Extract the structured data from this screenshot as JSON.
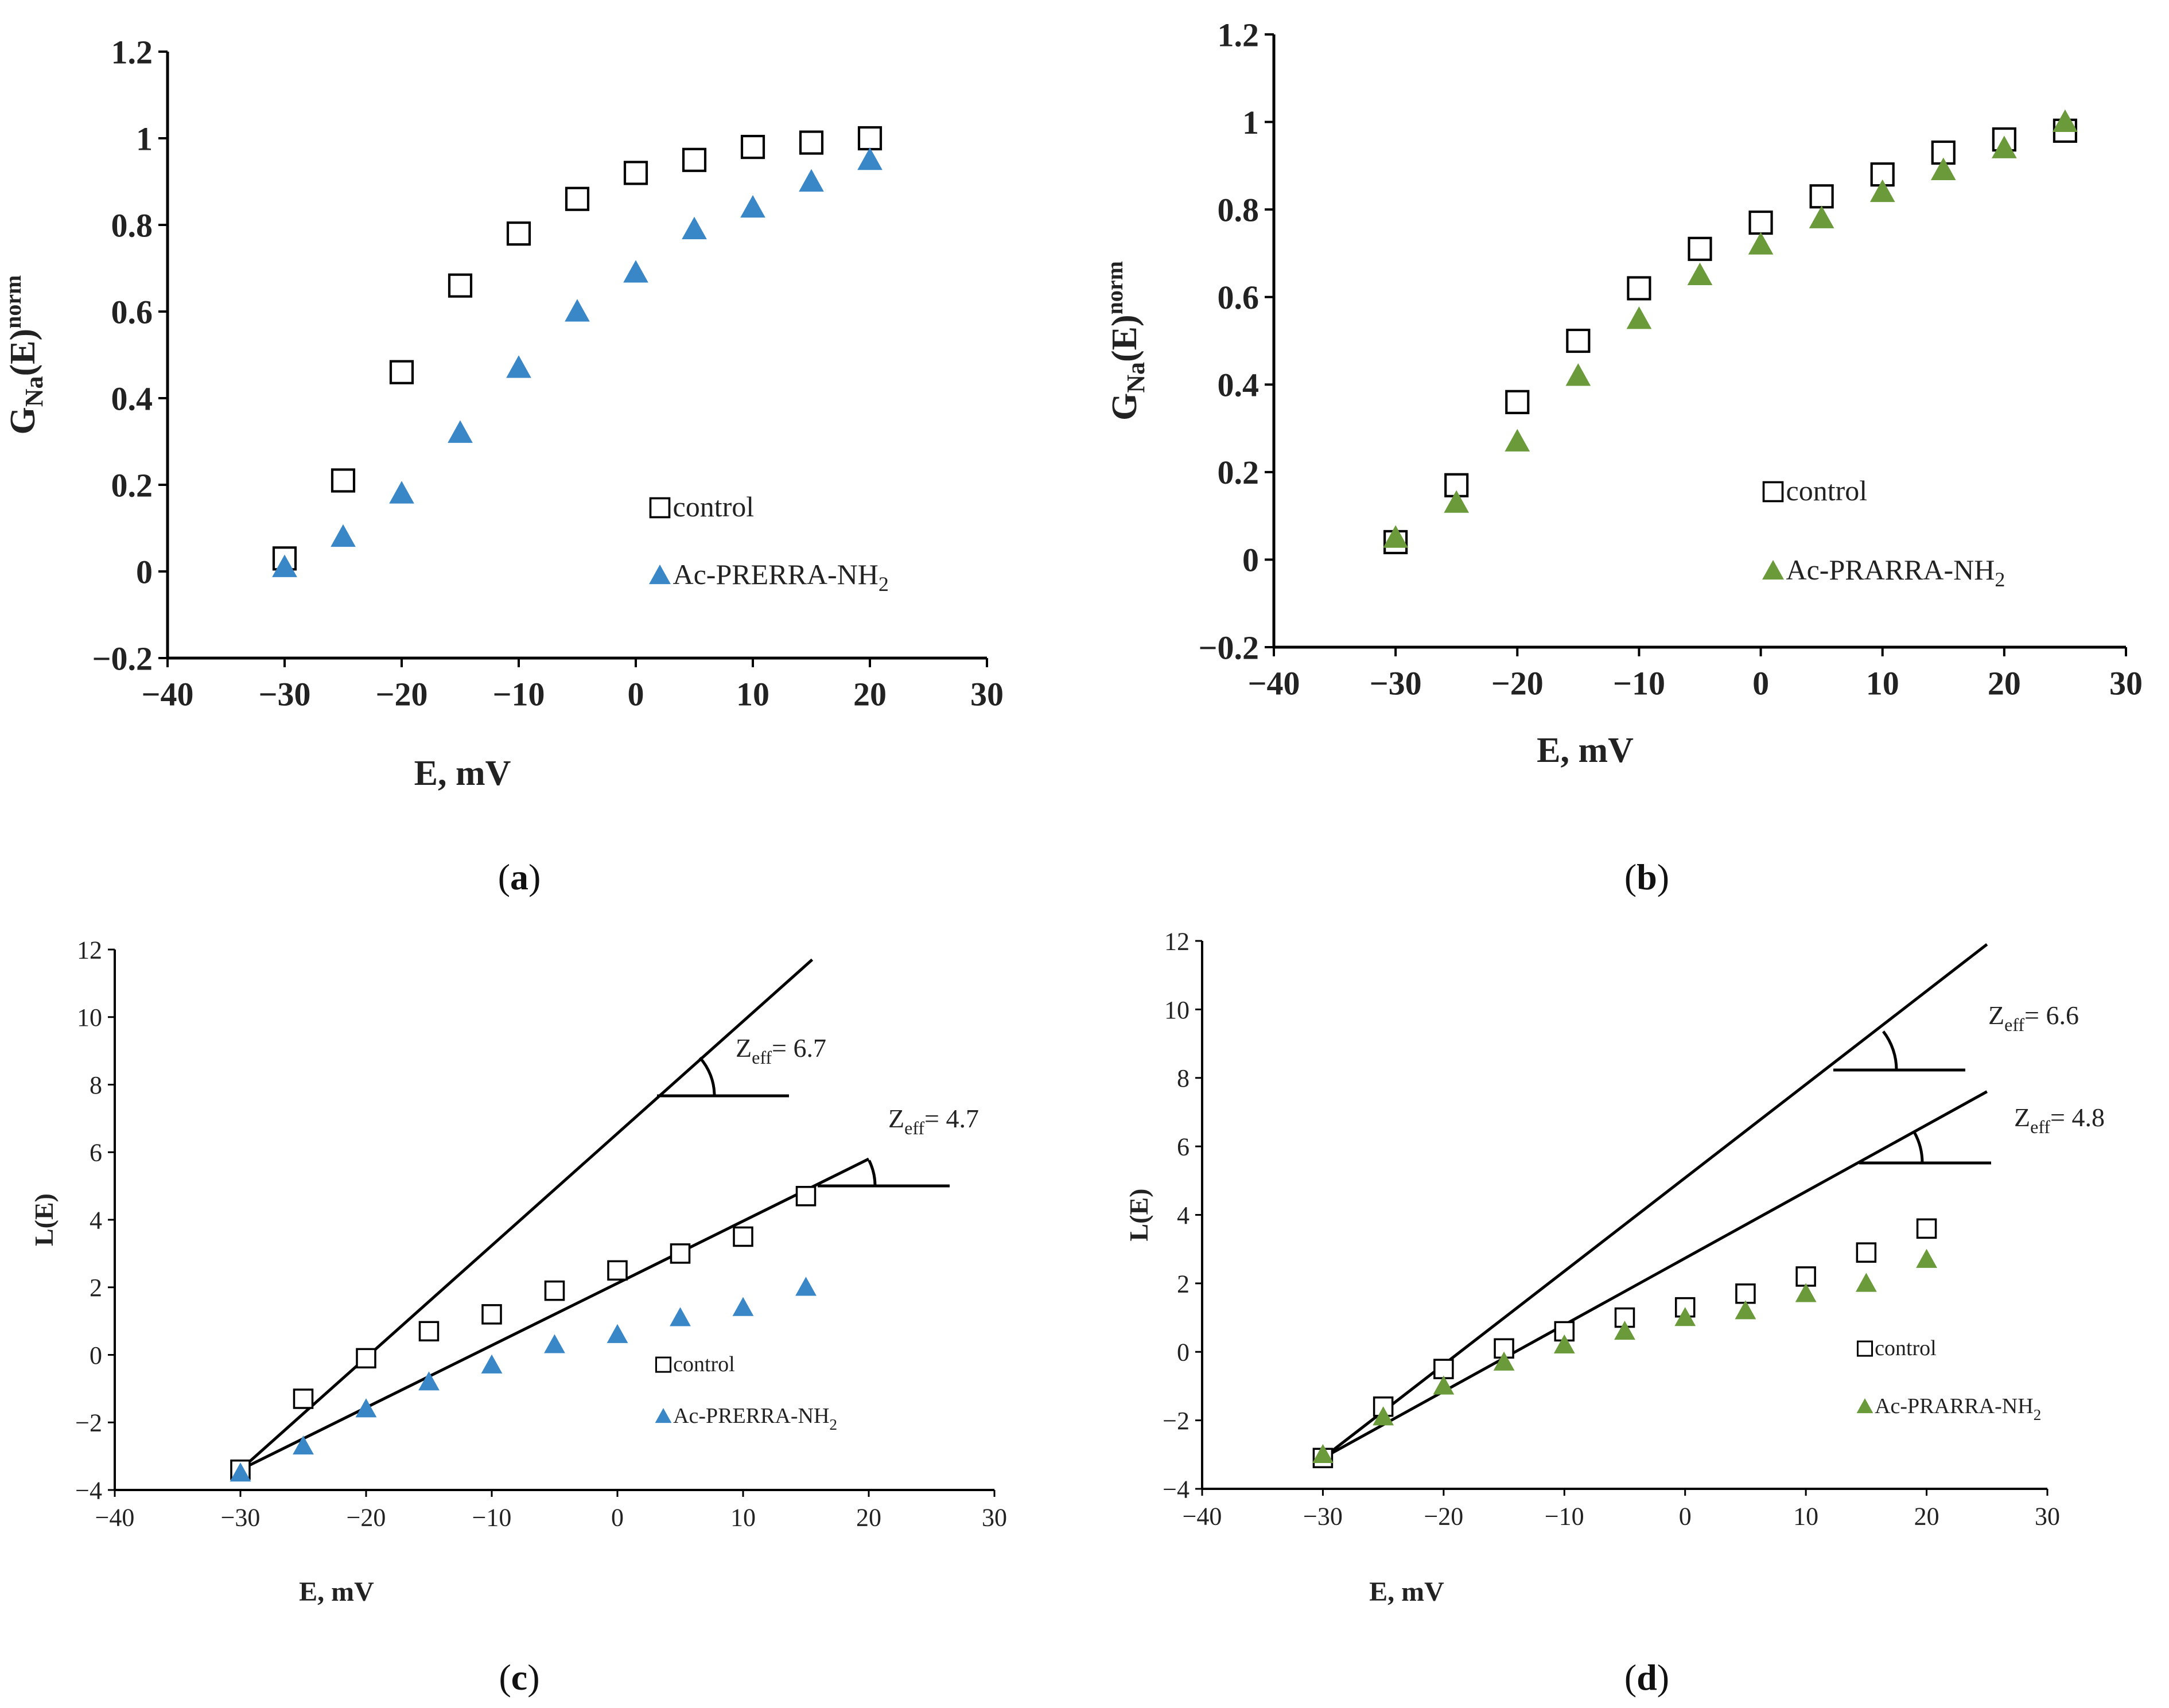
{
  "chart_data": [
    {
      "id": "a",
      "type": "scatter",
      "panel_label": "a",
      "xlabel": "E, mV",
      "ylabel_main": "G",
      "ylabel_sub": "Na",
      "ylabel_mid": "(E)",
      "ylabel_sup": "norm",
      "xlim": [
        -40,
        30
      ],
      "ylim": [
        -0.2,
        1.2
      ],
      "xticks": [
        -40,
        -30,
        -20,
        -10,
        0,
        10,
        20,
        30
      ],
      "yticks": [
        -0.2,
        0,
        0.2,
        0.4,
        0.6,
        0.8,
        1,
        1.2
      ],
      "xtick_labels": [
        "−40",
        "−30",
        "−20",
        "−10",
        "0",
        "10",
        "20",
        "30"
      ],
      "ytick_labels": [
        "−0.2",
        "0",
        "0.2",
        "0.4",
        "0.6",
        "0.8",
        "1",
        "1.2"
      ],
      "legend_position": "bottom-right",
      "series": [
        {
          "name": "control",
          "marker": "square",
          "color": "#000000",
          "x": [
            -30,
            -25,
            -20,
            -15,
            -10,
            -5,
            0,
            5,
            10,
            15,
            20
          ],
          "y": [
            0.03,
            0.21,
            0.46,
            0.66,
            0.78,
            0.86,
            0.92,
            0.95,
            0.98,
            0.99,
            1.0
          ]
        },
        {
          "name": "Ac-PRERRA-NH",
          "name_sub": "2",
          "marker": "triangle",
          "color": "#3a87c8",
          "x": [
            -30,
            -25,
            -20,
            -15,
            -10,
            -5,
            0,
            5,
            10,
            15,
            20
          ],
          "y": [
            0.01,
            0.08,
            0.18,
            0.32,
            0.47,
            0.6,
            0.69,
            0.79,
            0.84,
            0.9,
            0.95
          ]
        }
      ],
      "fit_lines": [],
      "annotations": []
    },
    {
      "id": "b",
      "type": "scatter",
      "panel_label": "b",
      "xlabel": "E, mV",
      "ylabel_main": "G",
      "ylabel_sub": "Na",
      "ylabel_mid": "(E)",
      "ylabel_sup": "norm",
      "xlim": [
        -40,
        30
      ],
      "ylim": [
        -0.2,
        1.2
      ],
      "xticks": [
        -40,
        -30,
        -20,
        -10,
        0,
        10,
        20,
        30
      ],
      "yticks": [
        -0.2,
        0,
        0.2,
        0.4,
        0.6,
        0.8,
        1,
        1.2
      ],
      "xtick_labels": [
        "−40",
        "−30",
        "−20",
        "−10",
        "0",
        "10",
        "20",
        "30"
      ],
      "ytick_labels": [
        "−0.2",
        "0",
        "0.2",
        "0.4",
        "0.6",
        "0.8",
        "1",
        "1.2"
      ],
      "legend_position": "bottom-right",
      "series": [
        {
          "name": "control",
          "marker": "square",
          "color": "#000000",
          "x": [
            -30,
            -25,
            -20,
            -15,
            -10,
            -5,
            0,
            5,
            10,
            15,
            20,
            25
          ],
          "y": [
            0.04,
            0.17,
            0.36,
            0.5,
            0.62,
            0.71,
            0.77,
            0.83,
            0.88,
            0.93,
            0.96,
            0.98
          ]
        },
        {
          "name": "Ac-PRARRA-NH",
          "name_sub": "2",
          "marker": "triangle",
          "color": "#6a9a3a",
          "x": [
            -30,
            -25,
            -20,
            -15,
            -10,
            -5,
            0,
            5,
            10,
            15,
            20,
            25
          ],
          "y": [
            0.05,
            0.13,
            0.27,
            0.42,
            0.55,
            0.65,
            0.72,
            0.78,
            0.84,
            0.89,
            0.94,
            1.0
          ]
        }
      ],
      "fit_lines": [],
      "annotations": []
    },
    {
      "id": "c",
      "type": "scatter",
      "panel_label": "c",
      "xlabel": "E, mV",
      "ylabel_main": "L(E)",
      "xlim": [
        -40,
        30
      ],
      "ylim": [
        -4,
        12
      ],
      "xticks": [
        -40,
        -30,
        -20,
        -10,
        0,
        10,
        20,
        30
      ],
      "yticks": [
        -4,
        -2,
        0,
        2,
        4,
        6,
        8,
        10,
        12
      ],
      "xtick_labels": [
        "−40",
        "−30",
        "−20",
        "−10",
        "0",
        "10",
        "20",
        "30"
      ],
      "ytick_labels": [
        "−4",
        "−2",
        "0",
        "2",
        "4",
        "6",
        "8",
        "10",
        "12"
      ],
      "legend_position": "bottom-right",
      "series": [
        {
          "name": "control",
          "marker": "square",
          "color": "#000000",
          "x": [
            -30,
            -25,
            -20,
            -15,
            -10,
            -5,
            0,
            5,
            10,
            15
          ],
          "y": [
            -3.4,
            -1.3,
            -0.1,
            0.7,
            1.2,
            1.9,
            2.5,
            3.0,
            3.5,
            4.7
          ]
        },
        {
          "name": "Ac-PRERRA-NH",
          "name_sub": "2",
          "marker": "triangle",
          "color": "#3a87c8",
          "x": [
            -30,
            -25,
            -20,
            -15,
            -10,
            -5,
            0,
            5,
            10,
            15
          ],
          "y": [
            -3.5,
            -2.7,
            -1.6,
            -0.8,
            -0.3,
            0.3,
            0.6,
            1.1,
            1.4,
            2.0
          ]
        }
      ],
      "fit_lines": [
        {
          "x": [
            -30,
            15.5
          ],
          "y": [
            -3.4,
            11.7
          ]
        },
        {
          "x": [
            -30,
            20
          ],
          "y": [
            -3.4,
            5.8
          ]
        }
      ],
      "annotations": [
        {
          "main": "Z",
          "sub": "eff",
          "rest": "= 6.7",
          "value": 6.7
        },
        {
          "main": "Z",
          "sub": "eff",
          "rest": "= 4.7",
          "value": 4.7
        }
      ]
    },
    {
      "id": "d",
      "type": "scatter",
      "panel_label": "d",
      "xlabel": "E, mV",
      "ylabel_main": "L(E)",
      "xlim": [
        -40,
        30
      ],
      "ylim": [
        -4,
        12
      ],
      "xticks": [
        -40,
        -30,
        -20,
        -10,
        0,
        10,
        20,
        30
      ],
      "yticks": [
        -4,
        -2,
        0,
        2,
        4,
        6,
        8,
        10,
        12
      ],
      "xtick_labels": [
        "−40",
        "−30",
        "−20",
        "−10",
        "0",
        "10",
        "20",
        "30"
      ],
      "ytick_labels": [
        "−4",
        "−2",
        "0",
        "2",
        "4",
        "6",
        "8",
        "10",
        "12"
      ],
      "legend_position": "bottom-right",
      "series": [
        {
          "name": "control",
          "marker": "square",
          "color": "#000000",
          "x": [
            -30,
            -25,
            -20,
            -15,
            -10,
            -5,
            0,
            5,
            10,
            15,
            20
          ],
          "y": [
            -3.1,
            -1.6,
            -0.5,
            0.1,
            0.6,
            1.0,
            1.3,
            1.7,
            2.2,
            2.9,
            3.6
          ]
        },
        {
          "name": "Ac-PRARRA-NH",
          "name_sub": "2",
          "marker": "triangle",
          "color": "#6a9a3a",
          "x": [
            -30,
            -25,
            -20,
            -15,
            -10,
            -5,
            0,
            5,
            10,
            15,
            20
          ],
          "y": [
            -3.0,
            -1.9,
            -1.0,
            -0.3,
            0.2,
            0.6,
            1.0,
            1.2,
            1.7,
            2.0,
            2.7
          ]
        }
      ],
      "fit_lines": [
        {
          "x": [
            -30,
            25
          ],
          "y": [
            -3.1,
            11.9
          ]
        },
        {
          "x": [
            -30,
            25
          ],
          "y": [
            -3.1,
            7.6
          ]
        }
      ],
      "annotations": [
        {
          "main": "Z",
          "sub": "eff",
          "rest": "= 6.6",
          "value": 6.6
        },
        {
          "main": "Z",
          "sub": "eff",
          "rest": "= 4.8",
          "value": 4.8
        }
      ]
    }
  ]
}
